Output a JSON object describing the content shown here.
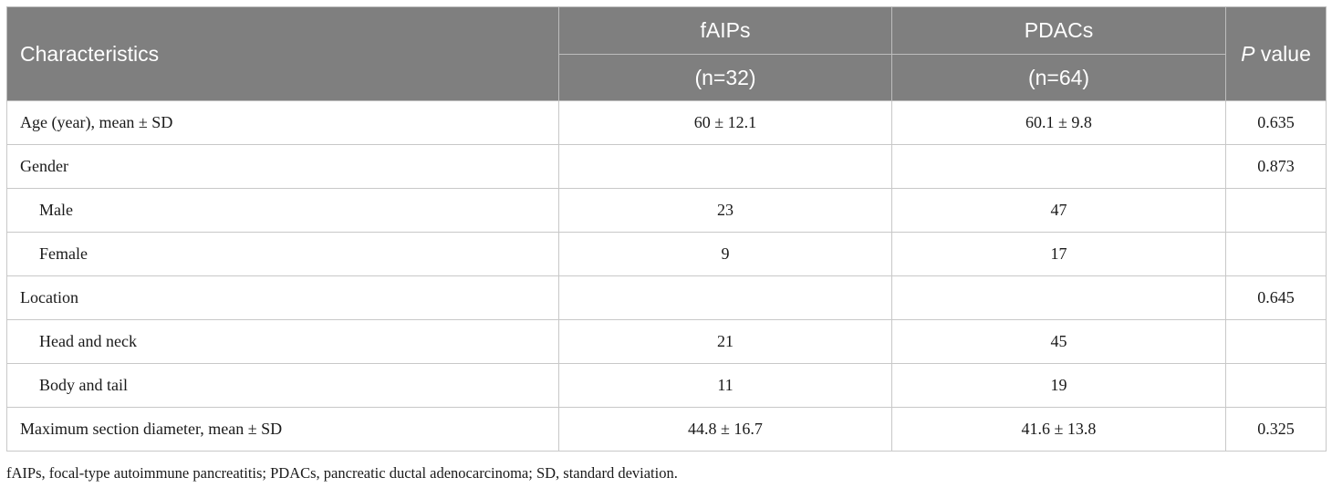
{
  "header": {
    "characteristics": "Characteristics",
    "group1_name": "fAIPs",
    "group1_n": "(n=32)",
    "group2_name": "PDACs",
    "group2_n": "(n=64)",
    "pvalue_italic": "P",
    "pvalue_rest": " value"
  },
  "rows": [
    {
      "label": "Age (year), mean ± SD",
      "fAIPs": "60 ± 12.1",
      "PDACs": "60.1 ± 9.8",
      "p": "0.635"
    },
    {
      "label": "Gender",
      "fAIPs": "",
      "PDACs": "",
      "p": "0.873"
    },
    {
      "label": "Male",
      "fAIPs": "23",
      "PDACs": "47",
      "p": ""
    },
    {
      "label": "Female",
      "fAIPs": "9",
      "PDACs": "17",
      "p": ""
    },
    {
      "label": "Location",
      "fAIPs": "",
      "PDACs": "",
      "p": "0.645"
    },
    {
      "label": "Head and neck",
      "fAIPs": "21",
      "PDACs": "45",
      "p": ""
    },
    {
      "label": "Body and tail",
      "fAIPs": "11",
      "PDACs": "19",
      "p": ""
    },
    {
      "label": "Maximum section diameter, mean ± SD",
      "fAIPs": "44.8 ± 16.7",
      "PDACs": "41.6 ± 13.8",
      "p": "0.325"
    }
  ],
  "footnote": "fAIPs, focal-type autoimmune pancreatitis; PDACs, pancreatic ductal adenocarcinoma; SD, standard deviation."
}
